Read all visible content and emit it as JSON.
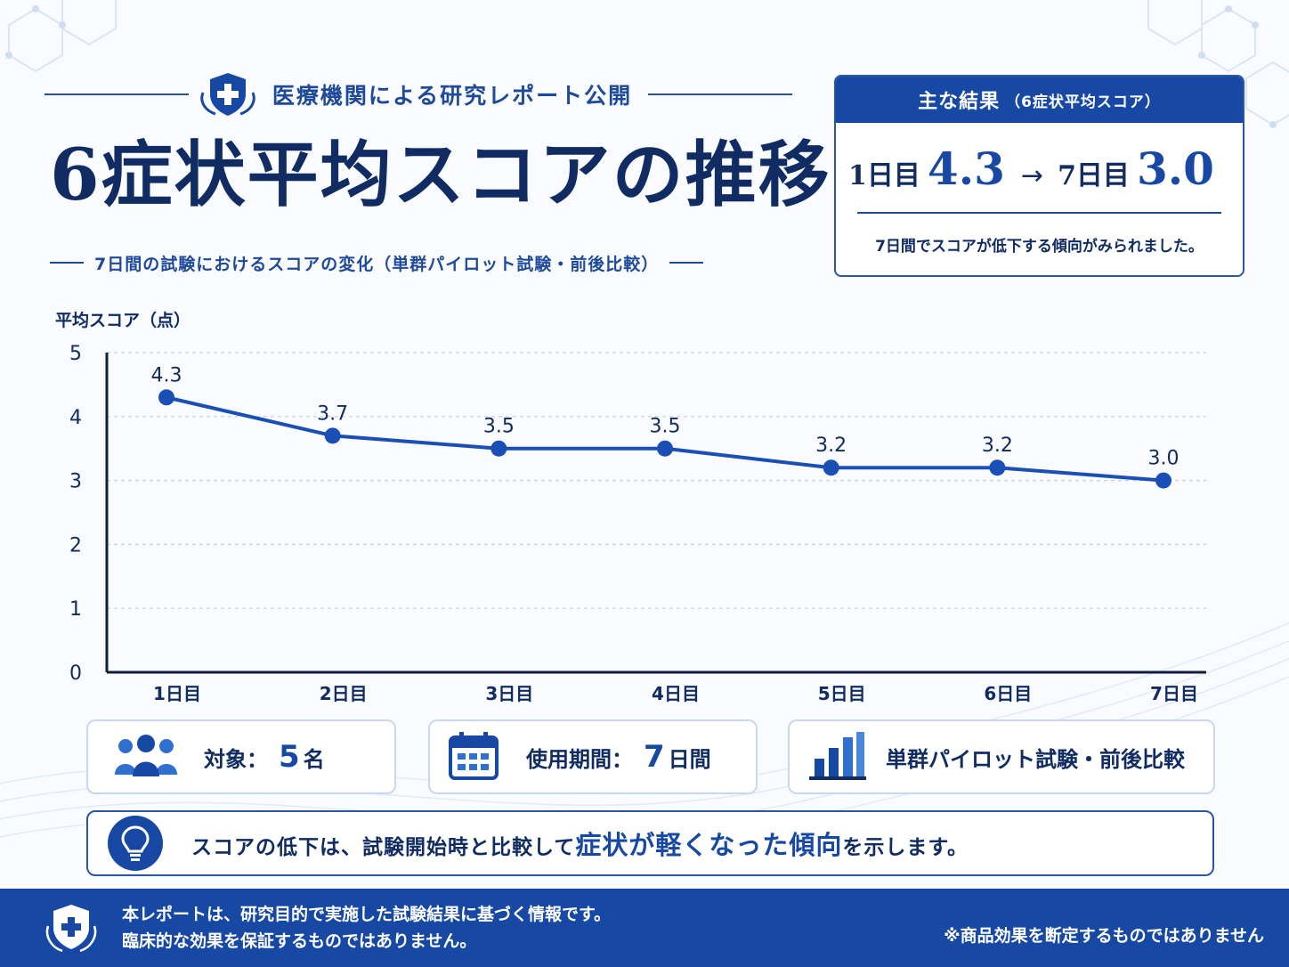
{
  "header": {
    "eyebrow": "医療機関による研究レポート公開",
    "title": "6症状平均スコアの推移",
    "subtitle": "7日間の試験におけるスコアの変化（単群パイロット試験・前後比較）"
  },
  "result_card": {
    "heading": "主な結果",
    "heading_note": "（6症状平均スコア）",
    "start_day": "1日目",
    "start_value": "4.3",
    "arrow": "→",
    "end_day": "7日目",
    "end_value": "3.0",
    "note": "7日間でスコアが低下する傾向がみられました。"
  },
  "chart_data": {
    "type": "line",
    "ylabel": "平均スコア（点）",
    "xlabel": "",
    "categories": [
      "1日目",
      "2日目",
      "3日目",
      "4日目",
      "5日目",
      "6日目",
      "7日目"
    ],
    "series": [
      {
        "values": [
          4.3,
          3.7,
          3.5,
          3.5,
          3.2,
          3.2,
          3.0
        ]
      }
    ],
    "data_labels": [
      "4.3",
      "3.7",
      "3.5",
      "3.5",
      "3.2",
      "3.2",
      "3.0"
    ],
    "ylim": [
      0,
      5
    ],
    "yticks": [
      0,
      1,
      2,
      3,
      4,
      5
    ],
    "grid": "horizontal-dashed",
    "color": "#1a4fb5"
  },
  "info_cards": {
    "subjects_label": "対象：",
    "subjects_value": "5",
    "subjects_unit": "名",
    "period_label": "使用期間：",
    "period_value": "7",
    "period_unit": "日間",
    "design": "単群パイロット試験・前後比較"
  },
  "tip": {
    "part1": "スコアの低下は、試験開始時と比較して",
    "emphasis": "症状が軽くなった傾向",
    "part2": "を示します。"
  },
  "footer": {
    "line1": "本レポートは、研究目的で実施した試験結果に基づく情報です。",
    "line2": "臨床的な効果を保証するものではありません。",
    "disclaimer": "※商品効果を断定するものではありません"
  },
  "colors": {
    "primary": "#1648a4",
    "navy": "#102c62",
    "line": "#1a4fb5"
  },
  "icons": [
    "shield-cross-icon",
    "people-icon",
    "calendar-icon",
    "bar-chart-icon",
    "lightbulb-icon"
  ]
}
